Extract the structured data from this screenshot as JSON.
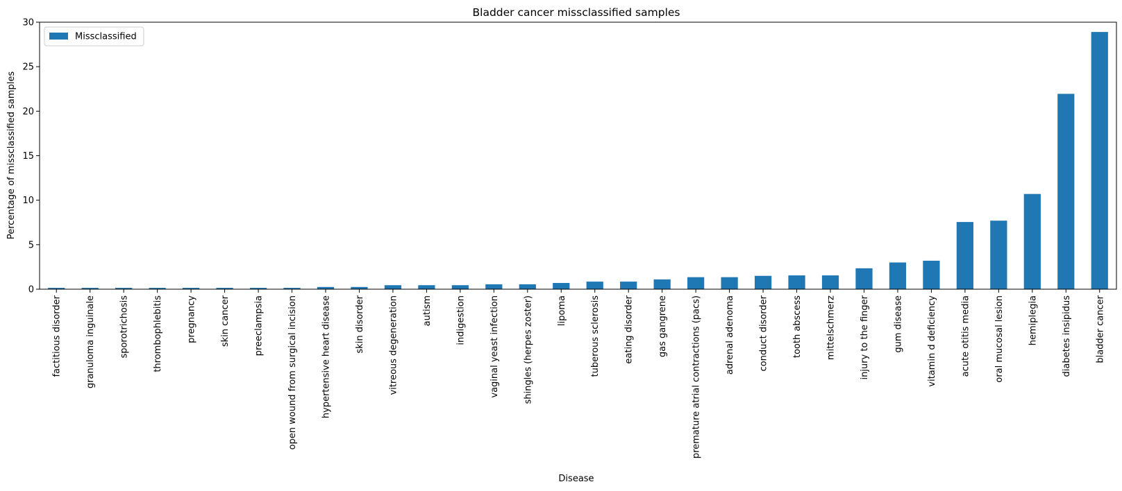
{
  "chart_data": {
    "type": "bar",
    "title": "Bladder cancer missclassified samples",
    "xlabel": "Disease",
    "ylabel": "Percentage of missclassified samples",
    "ylim": [
      0,
      30
    ],
    "yticks": [
      0,
      5,
      10,
      15,
      20,
      25,
      30
    ],
    "grid": false,
    "legend_position": "top-left",
    "color": "#1f77b4",
    "categories": [
      "factitious disorder",
      "granuloma inguinale",
      "sporotrichosis",
      "thrombophlebitis",
      "pregnancy",
      "skin cancer",
      "preeclampsia",
      "open wound from surgical incision",
      "hypertensive heart disease",
      "skin disorder",
      "vitreous degeneration",
      "autism",
      "indigestion",
      "vaginal yeast infection",
      "shingles (herpes zoster)",
      "lipoma",
      "tuberous sclerosis",
      "eating disorder",
      "gas gangrene",
      "premature atrial contractions (pacs)",
      "adrenal adenoma",
      "conduct disorder",
      "tooth abscess",
      "mittelschmerz",
      "injury to the finger",
      "gum disease",
      "vitamin d deficiency",
      "acute otitis media",
      "oral mucosal lesion",
      "hemiplegia",
      "diabetes insipidus",
      "bladder cancer"
    ],
    "series": [
      {
        "name": "Missclassified",
        "values": [
          0.15,
          0.15,
          0.15,
          0.15,
          0.15,
          0.15,
          0.15,
          0.15,
          0.25,
          0.25,
          0.45,
          0.45,
          0.45,
          0.55,
          0.55,
          0.7,
          0.85,
          0.85,
          1.1,
          1.35,
          1.35,
          1.5,
          1.55,
          1.55,
          2.35,
          3.0,
          3.2,
          7.55,
          7.7,
          10.7,
          21.95,
          28.9
        ]
      }
    ]
  }
}
